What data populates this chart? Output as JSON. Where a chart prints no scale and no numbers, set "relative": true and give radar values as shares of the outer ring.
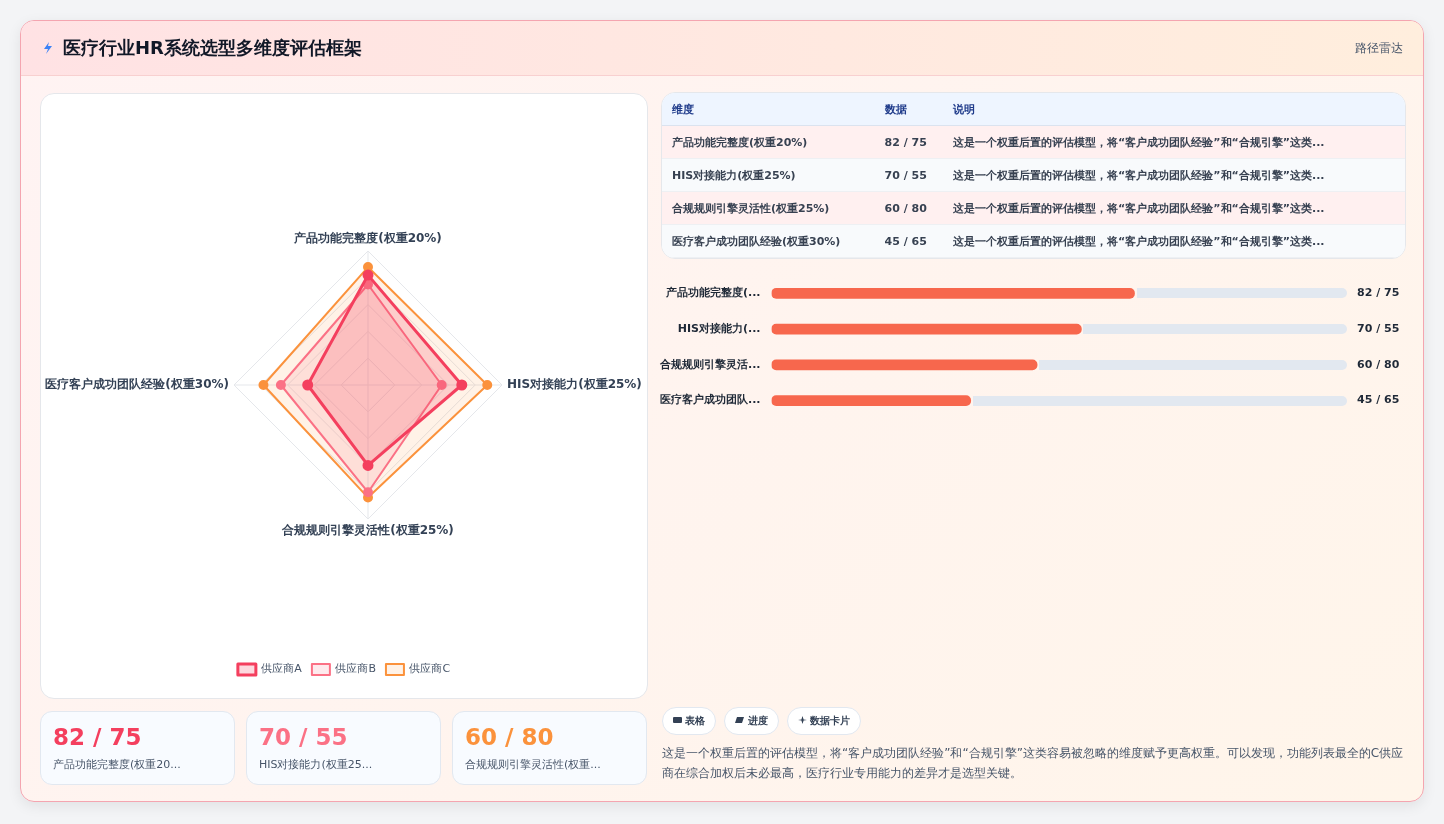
{
  "chart_data": [
    {
      "type": "radar",
      "title": "医疗行业HR系统选型多维度评估框架",
      "annotations": [
        "路径雷达"
      ],
      "relative": true,
      "legend": "bottom",
      "marker": "circle",
      "categories": [
        "产品功能完整度(权重20%)",
        "HIS对接能力(权重25%)",
        "合规规则引擎灵活性(权重25%)",
        "医疗客户成功团队经验(权重30%)"
      ],
      "series": [
        {
          "name": "供应商A",
          "color": "#f43f5e",
          "values": [
            0.82,
            0.7,
            0.6,
            0.45
          ]
        },
        {
          "name": "供应商B",
          "color": "#fb7185",
          "values": [
            0.75,
            0.55,
            0.8,
            0.65
          ]
        },
        {
          "name": "供应商C",
          "color": "#fb923c",
          "values": [
            0.88,
            0.89,
            0.84,
            0.78
          ]
        }
      ]
    },
    {
      "type": "other",
      "categories": [
        "产品功能完整度(权重20%)",
        "HIS对接能力(权重25%)",
        "合规规则引擎灵活性(权重25%)",
        "医疗客户成功团队经验(权重30%)"
      ],
      "value_labels": [
        "82 / 75",
        "70 / 55",
        "60 / 80",
        "45 / 65"
      ],
      "annotations": [
        "维度",
        "数据",
        "说明",
        "这是一个权重后置的评估模型，将“客户成功团队经验”和“合规引擎”这类...",
        "这是一个权重后置的评估模型，将“客户成功团队经验”和“合规引擎”这类...",
        "这是一个权重后置的评估模型，将“客户成功团队经验”和“合规引擎”这类...",
        "这是一个权重后置的评估模型，将“客户成功团队经验”和“合规引擎”这类..."
      ]
    },
    {
      "type": "bar",
      "orientation": "horizontal",
      "tick_labels": "y",
      "xlim": [
        0,
        130
      ],
      "color": "#f7674d",
      "categories": [
        "产品功能完整度(...",
        "HIS对接能力(...",
        "合规规则引擎灵活...",
        "医疗客户成功团队..."
      ],
      "values": [
        82,
        70,
        60,
        45
      ],
      "value_labels": [
        "82 / 75",
        "70 / 55",
        "60 / 80",
        "45 / 65"
      ]
    },
    {
      "type": "other",
      "categories": [
        "产品功能完整度(权重20...",
        "HIS对接能力(权重25...",
        "合规规则引擎灵活性(权重..."
      ],
      "value_labels": [
        "82 / 75",
        "70 / 55",
        "60 / 80"
      ]
    },
    {
      "type": "other",
      "categories": [
        "表格",
        "进度",
        "数据卡片"
      ],
      "annotations": [
        "这是一个权重后置的评估模型，将“客户成功团队经验”和“合规引擎”这类容易被忽略的维度赋予更高权重。可以发现，功能列表最全的C供应商在综合加权后未必最高，医疗行业专用能力的差异才是选型关键。"
      ]
    }
  ]
}
